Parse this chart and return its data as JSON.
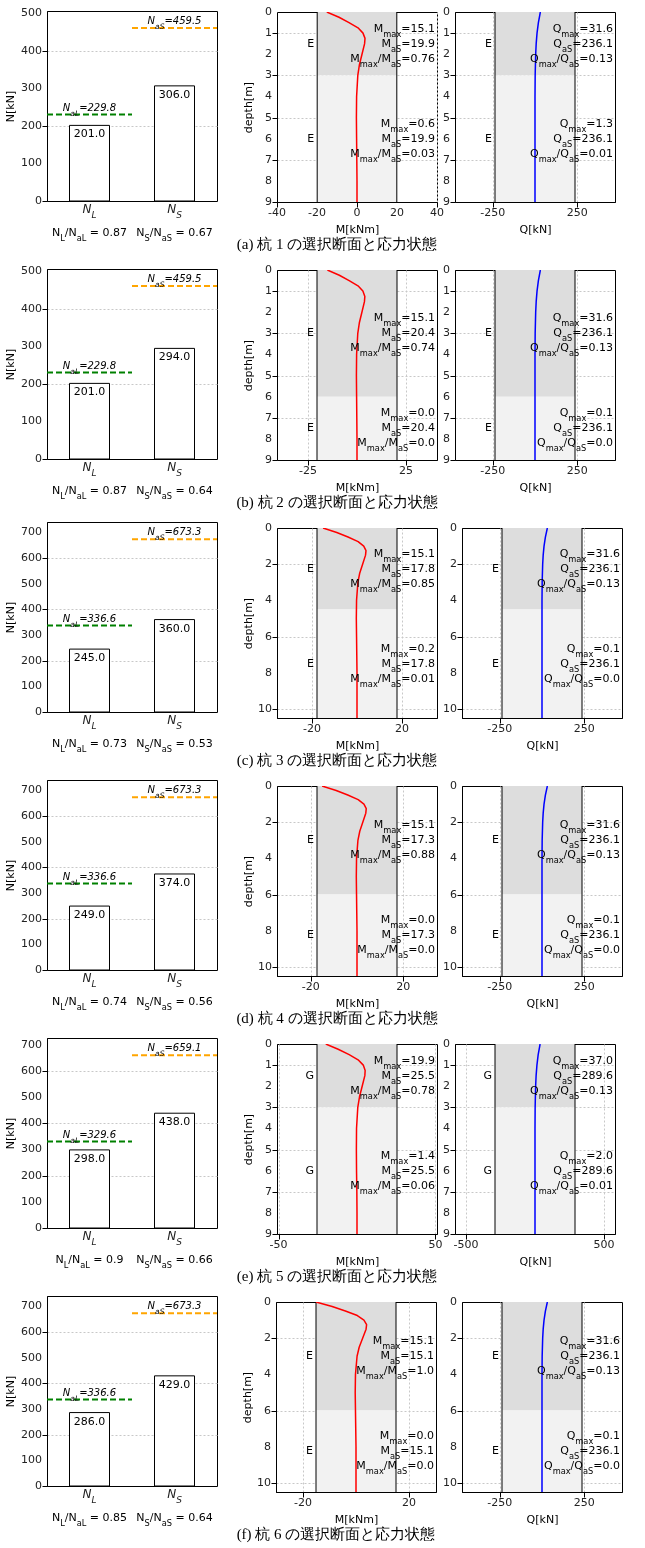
{
  "chart_data": [
    {
      "type": "bar",
      "categories": [
        "N$_{L}$",
        "N$_{S}$"
      ],
      "values": [
        201,
        306
      ],
      "color": "#ffffff",
      "value_labels": [
        "201.0",
        "306.0"
      ],
      "ylim": [
        0,
        505
      ],
      "yticks": [
        0,
        100,
        200,
        300,
        400,
        500
      ],
      "ylabel": "N[kN]",
      "grid": "y",
      "ref_lines": [
        {
          "axis": "y",
          "value": 229.8,
          "label": "N$_{aL}$=229.8",
          "color": "#008000",
          "line_style": "dashed"
        },
        {
          "axis": "y",
          "value": 459.5,
          "label": "N$_{aS}$=459.5",
          "color": "#ffa500",
          "line_style": "dashed"
        }
      ],
      "annotations": [
        "N$_{L}$/N$_{aL}$ = 0.87",
        "N$_{S}$/N$_{aS}$ = 0.67"
      ]
    },
    {
      "type": "line",
      "title": "(a) 杭 1 の選択断面と応力状態",
      "series": [
        {
          "color": "#ff0000",
          "x": [
            -15.1,
            -9,
            -4,
            0.5,
            3,
            4,
            3.8,
            2.5,
            1.2,
            0.4,
            -0.2,
            -0.3,
            -0.2,
            -0.1,
            0,
            0
          ],
          "values": [
            0,
            0.25,
            0.5,
            0.75,
            1,
            1.25,
            1.5,
            2,
            2.5,
            3,
            4,
            5,
            6,
            7,
            8,
            9
          ]
        }
      ],
      "xlim": [
        -40,
        40
      ],
      "xticks": [
        -40,
        -20,
        0,
        20,
        40
      ],
      "ylim": [
        9,
        0
      ],
      "yticks": [
        0,
        1,
        2,
        3,
        4,
        5,
        6,
        7,
        8,
        9
      ],
      "xlabel": "M[kNm]",
      "ylabel": "depth[m]",
      "grid": true,
      "bands": [
        {
          "axis": "y",
          "from": 0,
          "to": 3,
          "label": "E",
          "color": "#dddddd"
        },
        {
          "axis": "y",
          "from": 3,
          "to": 9,
          "label": "E",
          "color": "#f2f2f2"
        }
      ],
      "ref_lines": [
        {
          "axis": "x",
          "value": -19.9,
          "color": "#000000"
        },
        {
          "axis": "x",
          "value": 19.9,
          "color": "#000000"
        }
      ],
      "annotations": [
        "M$_{max}$=15.1",
        "M$_{aS}$=19.9",
        "M$_{max}$/M$_{aS}$=0.76",
        "M$_{max}$=0.6",
        "M$_{aS}$=19.9",
        "M$_{max}$/M$_{aS}$=0.03"
      ]
    },
    {
      "type": "line",
      "series": [
        {
          "color": "#0000ff",
          "x": [
            31.6,
            20,
            12,
            7,
            4,
            1,
            0,
            0,
            0
          ],
          "values": [
            0,
            0.5,
            1,
            1.5,
            2,
            3,
            4,
            6,
            9
          ]
        }
      ],
      "xlim": [
        -472.2,
        472.2
      ],
      "xticks": [
        -250,
        250
      ],
      "ylim": [
        9,
        0
      ],
      "yticks": [
        0,
        1,
        2,
        3,
        4,
        5,
        6,
        7,
        8,
        9
      ],
      "xlabel": "Q[kN]",
      "grid": true,
      "bands": [
        {
          "axis": "y",
          "from": 0,
          "to": 3,
          "label": "E",
          "color": "#dddddd"
        },
        {
          "axis": "y",
          "from": 3,
          "to": 9,
          "label": "E",
          "color": "#f2f2f2"
        }
      ],
      "ref_lines": [
        {
          "axis": "x",
          "value": -236.1,
          "color": "#000000"
        },
        {
          "axis": "x",
          "value": 236.1,
          "color": "#000000"
        }
      ],
      "annotations": [
        "Q$_{max}$=31.6",
        "Q$_{aS}$=236.1",
        "Q$_{max}$/Q$_{aS}$=0.13",
        "Q$_{max}$=1.3",
        "Q$_{aS}$=236.1",
        "Q$_{max}$/Q$_{aS}$=0.01"
      ]
    },
    {
      "type": "bar",
      "categories": [
        "N$_{L}$",
        "N$_{S}$"
      ],
      "values": [
        201,
        294
      ],
      "color": "#ffffff",
      "value_labels": [
        "201.0",
        "294.0"
      ],
      "ylim": [
        0,
        505
      ],
      "yticks": [
        0,
        100,
        200,
        300,
        400,
        500
      ],
      "ylabel": "N[kN]",
      "grid": "y",
      "ref_lines": [
        {
          "axis": "y",
          "value": 229.8,
          "label": "N$_{aL}$=229.8",
          "color": "#008000",
          "line_style": "dashed"
        },
        {
          "axis": "y",
          "value": 459.5,
          "label": "N$_{aS}$=459.5",
          "color": "#ffa500",
          "line_style": "dashed"
        }
      ],
      "annotations": [
        "N$_{L}$/N$_{aL}$ = 0.87",
        "N$_{S}$/N$_{aS}$ = 0.64"
      ]
    },
    {
      "type": "line",
      "title": "(b) 杭 2 の選択断面と応力状態",
      "series": [
        {
          "color": "#ff0000",
          "x": [
            -15.1,
            -9,
            -4,
            0.5,
            3,
            4,
            3.8,
            2.5,
            1.2,
            0.4,
            -0.2,
            -0.3,
            -0.2,
            -0.1,
            0,
            0
          ],
          "values": [
            0,
            0.25,
            0.5,
            0.75,
            1,
            1.25,
            1.5,
            2,
            2.5,
            3,
            4,
            5,
            6,
            7,
            8,
            9
          ]
        }
      ],
      "xlim": [
        -40.8,
        40.8
      ],
      "xticks": [
        -25,
        25
      ],
      "ylim": [
        9,
        0
      ],
      "yticks": [
        0,
        1,
        2,
        3,
        4,
        5,
        6,
        7,
        8,
        9
      ],
      "xlabel": "M[kNm]",
      "ylabel": "depth[m]",
      "grid": true,
      "bands": [
        {
          "axis": "y",
          "from": 0,
          "to": 6,
          "label": "E",
          "color": "#dddddd"
        },
        {
          "axis": "y",
          "from": 6,
          "to": 9,
          "label": "E",
          "color": "#f2f2f2"
        }
      ],
      "ref_lines": [
        {
          "axis": "x",
          "value": -20.4,
          "color": "#000000"
        },
        {
          "axis": "x",
          "value": 20.4,
          "color": "#000000"
        }
      ],
      "annotations": [
        "M$_{max}$=15.1",
        "M$_{aS}$=20.4",
        "M$_{max}$/M$_{aS}$=0.74",
        "M$_{max}$=0.0",
        "M$_{aS}$=20.4",
        "M$_{max}$/M$_{aS}$=0.0"
      ]
    },
    {
      "type": "line",
      "series": [
        {
          "color": "#0000ff",
          "x": [
            31.6,
            20,
            12,
            7,
            4,
            1,
            0,
            0,
            0
          ],
          "values": [
            0,
            0.5,
            1,
            1.5,
            2,
            3,
            4,
            6,
            9
          ]
        }
      ],
      "xlim": [
        -472.2,
        472.2
      ],
      "xticks": [
        -250,
        250
      ],
      "ylim": [
        9,
        0
      ],
      "yticks": [
        0,
        1,
        2,
        3,
        4,
        5,
        6,
        7,
        8,
        9
      ],
      "xlabel": "Q[kN]",
      "grid": true,
      "bands": [
        {
          "axis": "y",
          "from": 0,
          "to": 6,
          "label": "E",
          "color": "#dddddd"
        },
        {
          "axis": "y",
          "from": 6,
          "to": 9,
          "label": "E",
          "color": "#f2f2f2"
        }
      ],
      "ref_lines": [
        {
          "axis": "x",
          "value": -236.1,
          "color": "#000000"
        },
        {
          "axis": "x",
          "value": 236.1,
          "color": "#000000"
        }
      ],
      "annotations": [
        "Q$_{max}$=31.6",
        "Q$_{aS}$=236.1",
        "Q$_{max}$/Q$_{aS}$=0.13",
        "Q$_{max}$=0.1",
        "Q$_{aS}$=236.1",
        "Q$_{max}$/Q$_{aS}$=0.0"
      ]
    },
    {
      "type": "bar",
      "categories": [
        "N$_{L}$",
        "N$_{S}$"
      ],
      "values": [
        245,
        360
      ],
      "color": "#ffffff",
      "value_labels": [
        "245.0",
        "360.0"
      ],
      "ylim": [
        0,
        740
      ],
      "yticks": [
        0,
        100,
        200,
        300,
        400,
        500,
        600,
        700
      ],
      "ylabel": "N[kN]",
      "grid": "y",
      "ref_lines": [
        {
          "axis": "y",
          "value": 336.6,
          "label": "N$_{aL}$=336.6",
          "color": "#008000",
          "line_style": "dashed"
        },
        {
          "axis": "y",
          "value": 673.3,
          "label": "N$_{aS}$=673.3",
          "color": "#ffa500",
          "line_style": "dashed"
        }
      ],
      "annotations": [
        "N$_{L}$/N$_{aL}$ = 0.73",
        "N$_{S}$/N$_{aS}$ = 0.53"
      ]
    },
    {
      "type": "line",
      "title": "(c) 杭 3 の選択断面と応力状態",
      "series": [
        {
          "color": "#ff0000",
          "x": [
            -15.1,
            -9,
            -4,
            0.5,
            3,
            4,
            3.8,
            2.5,
            1.2,
            0.4,
            -0.2,
            -0.3,
            -0.2,
            -0.1,
            0,
            0,
            0
          ],
          "values": [
            0,
            0.25,
            0.5,
            0.75,
            1,
            1.25,
            1.5,
            2,
            2.5,
            3,
            4,
            5,
            6,
            7,
            8,
            9,
            10.5
          ]
        }
      ],
      "xlim": [
        -35.6,
        35.6
      ],
      "xticks": [
        -20,
        20
      ],
      "ylim": [
        10.5,
        0
      ],
      "yticks": [
        0,
        2,
        4,
        6,
        8,
        10
      ],
      "xlabel": "M[kNm]",
      "ylabel": "depth[m]",
      "grid": true,
      "bands": [
        {
          "axis": "y",
          "from": 0,
          "to": 4.5,
          "label": "E",
          "color": "#dddddd"
        },
        {
          "axis": "y",
          "from": 4.5,
          "to": 10.5,
          "label": "E",
          "color": "#f2f2f2"
        }
      ],
      "ref_lines": [
        {
          "axis": "x",
          "value": -17.8,
          "color": "#000000"
        },
        {
          "axis": "x",
          "value": 17.8,
          "color": "#000000"
        }
      ],
      "annotations": [
        "M$_{max}$=15.1",
        "M$_{aS}$=17.8",
        "M$_{max}$/M$_{aS}$=0.85",
        "M$_{max}$=0.2",
        "M$_{aS}$=17.8",
        "M$_{max}$/M$_{aS}$=0.01"
      ]
    },
    {
      "type": "line",
      "series": [
        {
          "color": "#0000ff",
          "x": [
            31.6,
            20,
            12,
            7,
            4,
            1,
            0,
            0,
            0
          ],
          "values": [
            0,
            0.5,
            1,
            1.5,
            2,
            3,
            4,
            6,
            10.5
          ]
        }
      ],
      "xlim": [
        -472.2,
        472.2
      ],
      "xticks": [
        -250,
        250
      ],
      "ylim": [
        10.5,
        0
      ],
      "yticks": [
        0,
        2,
        4,
        6,
        8,
        10
      ],
      "xlabel": "Q[kN]",
      "grid": true,
      "bands": [
        {
          "axis": "y",
          "from": 0,
          "to": 4.5,
          "label": "E",
          "color": "#dddddd"
        },
        {
          "axis": "y",
          "from": 4.5,
          "to": 10.5,
          "label": "E",
          "color": "#f2f2f2"
        }
      ],
      "ref_lines": [
        {
          "axis": "x",
          "value": -236.1,
          "color": "#000000"
        },
        {
          "axis": "x",
          "value": 236.1,
          "color": "#000000"
        }
      ],
      "annotations": [
        "Q$_{max}$=31.6",
        "Q$_{aS}$=236.1",
        "Q$_{max}$/Q$_{aS}$=0.13",
        "Q$_{max}$=0.1",
        "Q$_{aS}$=236.1",
        "Q$_{max}$/Q$_{aS}$=0.0"
      ]
    },
    {
      "type": "bar",
      "categories": [
        "N$_{L}$",
        "N$_{S}$"
      ],
      "values": [
        249,
        374
      ],
      "color": "#ffffff",
      "value_labels": [
        "249.0",
        "374.0"
      ],
      "ylim": [
        0,
        740
      ],
      "yticks": [
        0,
        100,
        200,
        300,
        400,
        500,
        600,
        700
      ],
      "ylabel": "N[kN]",
      "grid": "y",
      "ref_lines": [
        {
          "axis": "y",
          "value": 336.6,
          "label": "N$_{aL}$=336.6",
          "color": "#008000",
          "line_style": "dashed"
        },
        {
          "axis": "y",
          "value": 673.3,
          "label": "N$_{aS}$=673.3",
          "color": "#ffa500",
          "line_style": "dashed"
        }
      ],
      "annotations": [
        "N$_{L}$/N$_{aL}$ = 0.74",
        "N$_{S}$/N$_{aS}$ = 0.56"
      ]
    },
    {
      "type": "line",
      "title": "(d) 杭 4 の選択断面と応力状態",
      "series": [
        {
          "color": "#ff0000",
          "x": [
            -15.1,
            -9,
            -4,
            0.5,
            3,
            4,
            3.8,
            2.5,
            1.2,
            0.4,
            -0.2,
            -0.3,
            -0.2,
            -0.1,
            0,
            0,
            0
          ],
          "values": [
            0,
            0.25,
            0.5,
            0.75,
            1,
            1.25,
            1.5,
            2,
            2.5,
            3,
            4,
            5,
            6,
            7,
            8,
            9,
            10.5
          ]
        }
      ],
      "xlim": [
        -34.6,
        34.6
      ],
      "xticks": [
        -20,
        20
      ],
      "ylim": [
        10.5,
        0
      ],
      "yticks": [
        0,
        2,
        4,
        6,
        8,
        10
      ],
      "xlabel": "M[kNm]",
      "ylabel": "depth[m]",
      "grid": true,
      "bands": [
        {
          "axis": "y",
          "from": 0,
          "to": 6,
          "label": "E",
          "color": "#dddddd"
        },
        {
          "axis": "y",
          "from": 6,
          "to": 10.5,
          "label": "E",
          "color": "#f2f2f2"
        }
      ],
      "ref_lines": [
        {
          "axis": "x",
          "value": -17.3,
          "color": "#000000"
        },
        {
          "axis": "x",
          "value": 17.3,
          "color": "#000000"
        }
      ],
      "annotations": [
        "M$_{max}$=15.1",
        "M$_{aS}$=17.3",
        "M$_{max}$/M$_{aS}$=0.88",
        "M$_{max}$=0.0",
        "M$_{aS}$=17.3",
        "M$_{max}$/M$_{aS}$=0.0"
      ]
    },
    {
      "type": "line",
      "series": [
        {
          "color": "#0000ff",
          "x": [
            31.6,
            20,
            12,
            7,
            4,
            1,
            0,
            0,
            0
          ],
          "values": [
            0,
            0.5,
            1,
            1.5,
            2,
            3,
            4,
            6,
            10.5
          ]
        }
      ],
      "xlim": [
        -472.2,
        472.2
      ],
      "xticks": [
        -250,
        250
      ],
      "ylim": [
        10.5,
        0
      ],
      "yticks": [
        0,
        2,
        4,
        6,
        8,
        10
      ],
      "xlabel": "Q[kN]",
      "grid": true,
      "bands": [
        {
          "axis": "y",
          "from": 0,
          "to": 6,
          "label": "E",
          "color": "#dddddd"
        },
        {
          "axis": "y",
          "from": 6,
          "to": 10.5,
          "label": "E",
          "color": "#f2f2f2"
        }
      ],
      "ref_lines": [
        {
          "axis": "x",
          "value": -236.1,
          "color": "#000000"
        },
        {
          "axis": "x",
          "value": 236.1,
          "color": "#000000"
        }
      ],
      "annotations": [
        "Q$_{max}$=31.6",
        "Q$_{aS}$=236.1",
        "Q$_{max}$/Q$_{aS}$=0.13",
        "Q$_{max}$=0.1",
        "Q$_{aS}$=236.1",
        "Q$_{max}$/Q$_{aS}$=0.0"
      ]
    },
    {
      "type": "bar",
      "categories": [
        "N$_{L}$",
        "N$_{S}$"
      ],
      "values": [
        298,
        438
      ],
      "color": "#ffffff",
      "value_labels": [
        "298.0",
        "438.0"
      ],
      "ylim": [
        0,
        725
      ],
      "yticks": [
        0,
        100,
        200,
        300,
        400,
        500,
        600,
        700
      ],
      "ylabel": "N[kN]",
      "grid": "y",
      "ref_lines": [
        {
          "axis": "y",
          "value": 329.6,
          "label": "N$_{aL}$=329.6",
          "color": "#008000",
          "line_style": "dashed"
        },
        {
          "axis": "y",
          "value": 659.1,
          "label": "N$_{aS}$=659.1",
          "color": "#ffa500",
          "line_style": "dashed"
        }
      ],
      "annotations": [
        "N$_{L}$/N$_{aL}$ = 0.9",
        "N$_{S}$/N$_{aS}$ = 0.66"
      ]
    },
    {
      "type": "line",
      "title": "(e) 杭 5 の選択断面と応力状態",
      "series": [
        {
          "color": "#ff0000",
          "x": [
            -19.9,
            -12,
            -5,
            0.7,
            4,
            5.2,
            5,
            3.3,
            1.6,
            0.5,
            -0.3,
            -0.4,
            -0.3,
            -0.1,
            0,
            0
          ],
          "values": [
            0,
            0.25,
            0.5,
            0.75,
            1,
            1.25,
            1.5,
            2,
            2.5,
            3,
            4,
            5,
            6,
            7,
            8,
            9
          ]
        }
      ],
      "xlim": [
        -51,
        51
      ],
      "xticks": [
        -50,
        50
      ],
      "ylim": [
        9,
        0
      ],
      "yticks": [
        0,
        1,
        2,
        3,
        4,
        5,
        6,
        7,
        8,
        9
      ],
      "xlabel": "M[kNm]",
      "ylabel": "depth[m]",
      "grid": true,
      "bands": [
        {
          "axis": "y",
          "from": 0,
          "to": 3,
          "label": "G",
          "color": "#dddddd"
        },
        {
          "axis": "y",
          "from": 3,
          "to": 9,
          "label": "G",
          "color": "#f2f2f2"
        }
      ],
      "ref_lines": [
        {
          "axis": "x",
          "value": -25.5,
          "color": "#000000"
        },
        {
          "axis": "x",
          "value": 25.5,
          "color": "#000000"
        }
      ],
      "annotations": [
        "M$_{max}$=19.9",
        "M$_{aS}$=25.5",
        "M$_{max}$/M$_{aS}$=0.78",
        "M$_{max}$=1.4",
        "M$_{aS}$=25.5",
        "M$_{max}$/M$_{aS}$=0.06"
      ]
    },
    {
      "type": "line",
      "series": [
        {
          "color": "#0000ff",
          "x": [
            37,
            23,
            14,
            8,
            4.5,
            1,
            0,
            0,
            0
          ],
          "values": [
            0,
            0.5,
            1,
            1.5,
            2,
            3,
            4,
            6,
            9
          ]
        }
      ],
      "xlim": [
        -579.2,
        579.2
      ],
      "xticks": [
        -500,
        500
      ],
      "ylim": [
        9,
        0
      ],
      "yticks": [
        0,
        1,
        2,
        3,
        4,
        5,
        6,
        7,
        8,
        9
      ],
      "xlabel": "Q[kN]",
      "grid": true,
      "bands": [
        {
          "axis": "y",
          "from": 0,
          "to": 3,
          "label": "G",
          "color": "#dddddd"
        },
        {
          "axis": "y",
          "from": 3,
          "to": 9,
          "label": "G",
          "color": "#f2f2f2"
        }
      ],
      "ref_lines": [
        {
          "axis": "x",
          "value": -289.6,
          "color": "#000000"
        },
        {
          "axis": "x",
          "value": 289.6,
          "color": "#000000"
        }
      ],
      "annotations": [
        "Q$_{max}$=37.0",
        "Q$_{aS}$=289.6",
        "Q$_{max}$/Q$_{aS}$=0.13",
        "Q$_{max}$=2.0",
        "Q$_{aS}$=289.6",
        "Q$_{max}$/Q$_{aS}$=0.01"
      ]
    },
    {
      "type": "bar",
      "categories": [
        "N$_{L}$",
        "N$_{S}$"
      ],
      "values": [
        286,
        429
      ],
      "color": "#ffffff",
      "value_labels": [
        "286.0",
        "429.0"
      ],
      "ylim": [
        0,
        740
      ],
      "yticks": [
        0,
        100,
        200,
        300,
        400,
        500,
        600,
        700
      ],
      "ylabel": "N[kN]",
      "grid": "y",
      "ref_lines": [
        {
          "axis": "y",
          "value": 336.6,
          "label": "N$_{aL}$=336.6",
          "color": "#008000",
          "line_style": "dashed"
        },
        {
          "axis": "y",
          "value": 673.3,
          "label": "N$_{aS}$=673.3",
          "color": "#ffa500",
          "line_style": "dashed"
        }
      ],
      "annotations": [
        "N$_{L}$/N$_{aL}$ = 0.85",
        "N$_{S}$/N$_{aS}$ = 0.64"
      ]
    },
    {
      "type": "line",
      "title": "(f) 杭 6 の選択断面と応力状態",
      "series": [
        {
          "color": "#ff0000",
          "x": [
            -15.1,
            -9,
            -4,
            0.5,
            3,
            4,
            3.8,
            2.5,
            1.2,
            0.4,
            -0.2,
            -0.3,
            -0.2,
            -0.1,
            0,
            0,
            0
          ],
          "values": [
            0,
            0.25,
            0.5,
            0.75,
            1,
            1.25,
            1.5,
            2,
            2.5,
            3,
            4,
            5,
            6,
            7,
            8,
            9,
            10.5
          ]
        }
      ],
      "xlim": [
        -30.2,
        30.2
      ],
      "xticks": [
        -20,
        20
      ],
      "ylim": [
        10.5,
        0
      ],
      "yticks": [
        0,
        2,
        4,
        6,
        8,
        10
      ],
      "xlabel": "M[kNm]",
      "ylabel": "depth[m]",
      "grid": true,
      "bands": [
        {
          "axis": "y",
          "from": 0,
          "to": 6,
          "label": "E",
          "color": "#dddddd"
        },
        {
          "axis": "y",
          "from": 6,
          "to": 10.5,
          "label": "E",
          "color": "#f2f2f2"
        }
      ],
      "ref_lines": [
        {
          "axis": "x",
          "value": -15.1,
          "color": "#000000"
        },
        {
          "axis": "x",
          "value": 15.1,
          "color": "#000000"
        }
      ],
      "annotations": [
        "M$_{max}$=15.1",
        "M$_{aS}$=15.1",
        "M$_{max}$/M$_{aS}$=1.0",
        "M$_{max}$=0.0",
        "M$_{aS}$=15.1",
        "M$_{max}$/M$_{aS}$=0.0"
      ]
    },
    {
      "type": "line",
      "series": [
        {
          "color": "#0000ff",
          "x": [
            31.6,
            20,
            12,
            7,
            4,
            1,
            0,
            0,
            0
          ],
          "values": [
            0,
            0.5,
            1,
            1.5,
            2,
            3,
            4,
            6,
            10.5
          ]
        }
      ],
      "xlim": [
        -472.2,
        472.2
      ],
      "xticks": [
        -250,
        250
      ],
      "ylim": [
        10.5,
        0
      ],
      "yticks": [
        0,
        2,
        4,
        6,
        8,
        10
      ],
      "xlabel": "Q[kN]",
      "grid": true,
      "bands": [
        {
          "axis": "y",
          "from": 0,
          "to": 6,
          "label": "E",
          "color": "#dddddd"
        },
        {
          "axis": "y",
          "from": 6,
          "to": 10.5,
          "label": "E",
          "color": "#f2f2f2"
        }
      ],
      "ref_lines": [
        {
          "axis": "x",
          "value": -236.1,
          "color": "#000000"
        },
        {
          "axis": "x",
          "value": 236.1,
          "color": "#000000"
        }
      ],
      "annotations": [
        "Q$_{max}$=31.6",
        "Q$_{aS}$=236.1",
        "Q$_{max}$/Q$_{aS}$=0.13",
        "Q$_{max}$=0.1",
        "Q$_{aS}$=236.1",
        "Q$_{max}$/Q$_{aS}$=0.0"
      ]
    }
  ]
}
